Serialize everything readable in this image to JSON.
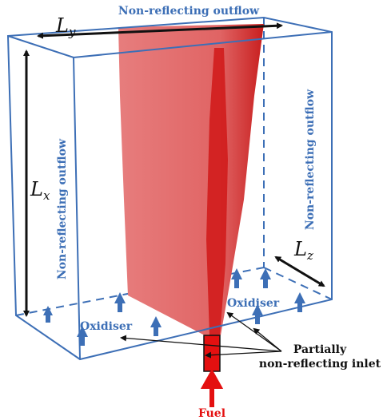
{
  "labels": {
    "top_outflow": "Non-reflecting outflow",
    "left_outflow": "Non-reflecting outflow",
    "right_outflow": "Non-reflecting outflow",
    "ly": {
      "main": "L",
      "sub": "y"
    },
    "lx": {
      "main": "L",
      "sub": "x"
    },
    "lz": {
      "main": "L",
      "sub": "z"
    },
    "oxidiser_left": "Oxidiser",
    "oxidiser_right": "Oxidiser",
    "inlet": [
      "Partially",
      "non-reflecting inlet"
    ],
    "fuel": "Fuel"
  }
}
